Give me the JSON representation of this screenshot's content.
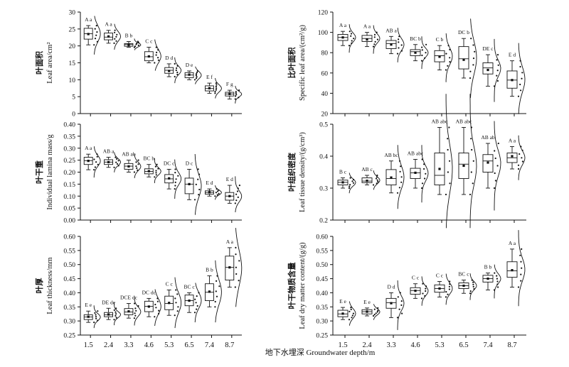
{
  "figure": {
    "xlabel": "地下水埋深  Groundwater depth/m",
    "x_categories": [
      "1.5",
      "2.4",
      "3.3",
      "4.6",
      "5.3",
      "6.5",
      "7.4",
      "8.7"
    ]
  },
  "chart_data": [
    {
      "type": "box",
      "id": "leaf-area",
      "ylabel_cn": "叶面积",
      "ylabel_en": "Leaf area/cm²",
      "ylim": [
        0,
        30
      ],
      "yticks": [
        0,
        5,
        10,
        15,
        20,
        25,
        30
      ],
      "tick_format": "int",
      "categories": [
        "1.5",
        "2.4",
        "3.3",
        "4.6",
        "5.3",
        "6.5",
        "7.4",
        "8.7"
      ],
      "boxes": [
        {
          "min": 20.3,
          "q1": 22.0,
          "median": 23.6,
          "q3": 25.2,
          "max": 26.0,
          "mean": 23.5
        },
        {
          "min": 20.8,
          "q1": 21.8,
          "median": 22.6,
          "q3": 23.8,
          "max": 24.6,
          "mean": 22.8
        },
        {
          "min": 19.6,
          "q1": 19.9,
          "median": 20.4,
          "q3": 20.7,
          "max": 21.3,
          "mean": 20.3
        },
        {
          "min": 15.0,
          "q1": 15.6,
          "median": 16.8,
          "q3": 18.3,
          "max": 19.6,
          "mean": 16.9
        },
        {
          "min": 10.9,
          "q1": 11.9,
          "median": 12.8,
          "q3": 13.6,
          "max": 14.7,
          "mean": 12.6
        },
        {
          "min": 10.0,
          "q1": 10.6,
          "median": 11.4,
          "q3": 12.1,
          "max": 12.6,
          "mean": 11.5
        },
        {
          "min": 6.0,
          "q1": 6.7,
          "median": 7.4,
          "q3": 8.2,
          "max": 9.0,
          "mean": 7.5
        },
        {
          "min": 4.3,
          "q1": 5.2,
          "median": 5.8,
          "q3": 6.3,
          "max": 6.9,
          "mean": 5.8
        }
      ],
      "groups": [
        "A a",
        "A a",
        "B b",
        "C c",
        "D d",
        "D e",
        "E f",
        "F g"
      ]
    },
    {
      "type": "box",
      "id": "specific-leaf-area",
      "ylabel_cn": "比叶面积",
      "ylabel_en": "Specific leaf area/(cm²/g)",
      "ylim": [
        20,
        120
      ],
      "yticks": [
        20,
        40,
        60,
        80,
        100,
        120
      ],
      "tick_format": "int",
      "categories": [
        "1.5",
        "2.4",
        "3.3",
        "4.6",
        "5.3",
        "6.5",
        "7.4",
        "8.7"
      ],
      "boxes": [
        {
          "min": 87,
          "q1": 92,
          "median": 95,
          "q3": 98,
          "max": 101,
          "mean": 95
        },
        {
          "min": 86,
          "q1": 91,
          "median": 94,
          "q3": 97,
          "max": 100,
          "mean": 93
        },
        {
          "min": 79,
          "q1": 84,
          "median": 89,
          "q3": 92,
          "max": 96,
          "mean": 88
        },
        {
          "min": 72,
          "q1": 77,
          "median": 81,
          "q3": 83,
          "max": 88,
          "mean": 80
        },
        {
          "min": 63,
          "q1": 71,
          "median": 77,
          "q3": 82,
          "max": 87,
          "mean": 76
        },
        {
          "min": 55,
          "q1": 64,
          "median": 74,
          "q3": 86,
          "max": 94,
          "mean": 73
        },
        {
          "min": 47,
          "q1": 59,
          "median": 65,
          "q3": 70,
          "max": 78,
          "mean": 63
        },
        {
          "min": 37,
          "q1": 45,
          "median": 53,
          "q3": 62,
          "max": 72,
          "mean": 53
        }
      ],
      "groups": [
        "A a",
        "A a",
        "AB a",
        "BC b",
        "C b",
        "DC b",
        "DE c",
        "E d"
      ]
    },
    {
      "type": "box",
      "id": "lamina-mass",
      "ylabel_cn": "叶干重",
      "ylabel_en": "Individual lamina mass/g",
      "ylim": [
        0,
        0.4
      ],
      "yticks": [
        0,
        0.05,
        0.1,
        0.15,
        0.2,
        0.25,
        0.3,
        0.35,
        0.4
      ],
      "tick_format": "fixed2",
      "categories": [
        "1.5",
        "2.4",
        "3.3",
        "4.6",
        "5.3",
        "6.5",
        "7.4",
        "8.7"
      ],
      "boxes": [
        {
          "min": 0.21,
          "q1": 0.232,
          "median": 0.248,
          "q3": 0.262,
          "max": 0.275,
          "mean": 0.247
        },
        {
          "min": 0.22,
          "q1": 0.232,
          "median": 0.242,
          "q3": 0.252,
          "max": 0.262,
          "mean": 0.242
        },
        {
          "min": 0.2,
          "q1": 0.212,
          "median": 0.225,
          "q3": 0.236,
          "max": 0.25,
          "mean": 0.224
        },
        {
          "min": 0.18,
          "q1": 0.193,
          "median": 0.203,
          "q3": 0.214,
          "max": 0.232,
          "mean": 0.204
        },
        {
          "min": 0.13,
          "q1": 0.155,
          "median": 0.172,
          "q3": 0.19,
          "max": 0.212,
          "mean": 0.174
        },
        {
          "min": 0.085,
          "q1": 0.11,
          "median": 0.15,
          "q3": 0.175,
          "max": 0.212,
          "mean": 0.15
        },
        {
          "min": 0.1,
          "q1": 0.108,
          "median": 0.115,
          "q3": 0.122,
          "max": 0.13,
          "mean": 0.116
        },
        {
          "min": 0.07,
          "q1": 0.083,
          "median": 0.1,
          "q3": 0.115,
          "max": 0.145,
          "mean": 0.1
        }
      ],
      "groups": [
        "A a",
        "AB a",
        "AB ab",
        "BC b",
        "DC c",
        "D c",
        "E d",
        "E d"
      ]
    },
    {
      "type": "box",
      "id": "tissue-density",
      "ylabel_cn": "叶组织密度",
      "ylabel_en": "Leaf tissue density/(g/cm³)",
      "ylim": [
        0.2,
        0.5
      ],
      "yticks": [
        0.2,
        0.3,
        0.4,
        0.5
      ],
      "tick_format": "fixed1",
      "categories": [
        "1.5",
        "2.4",
        "3.3",
        "4.6",
        "5.3",
        "6.5",
        "7.4",
        "8.7"
      ],
      "boxes": [
        {
          "min": 0.3,
          "q1": 0.31,
          "median": 0.318,
          "q3": 0.325,
          "max": 0.332,
          "mean": 0.318
        },
        {
          "min": 0.31,
          "q1": 0.317,
          "median": 0.322,
          "q3": 0.332,
          "max": 0.34,
          "mean": 0.323
        },
        {
          "min": 0.285,
          "q1": 0.31,
          "median": 0.33,
          "q3": 0.358,
          "max": 0.385,
          "mean": 0.333
        },
        {
          "min": 0.3,
          "q1": 0.33,
          "median": 0.348,
          "q3": 0.362,
          "max": 0.39,
          "mean": 0.348
        },
        {
          "min": 0.28,
          "q1": 0.31,
          "median": 0.34,
          "q3": 0.41,
          "max": 0.49,
          "mean": 0.36
        },
        {
          "min": 0.28,
          "q1": 0.33,
          "median": 0.375,
          "q3": 0.41,
          "max": 0.49,
          "mean": 0.37
        },
        {
          "min": 0.3,
          "q1": 0.35,
          "median": 0.385,
          "q3": 0.405,
          "max": 0.44,
          "mean": 0.38
        },
        {
          "min": 0.36,
          "q1": 0.38,
          "median": 0.395,
          "q3": 0.41,
          "max": 0.43,
          "mean": 0.4
        }
      ],
      "groups": [
        "B c",
        "AB c",
        "AB bc",
        "AB abc",
        "AB abc",
        "AB abc",
        "AB ab",
        "A a"
      ]
    },
    {
      "type": "box",
      "id": "leaf-thickness",
      "ylabel_cn": "叶厚",
      "ylabel_en": "Leaf thickness/mm",
      "ylim": [
        0.25,
        0.6
      ],
      "yticks": [
        0.25,
        0.3,
        0.35,
        0.4,
        0.45,
        0.5,
        0.55,
        0.6
      ],
      "tick_format": "fixed2",
      "categories": [
        "1.5",
        "2.4",
        "3.3",
        "4.6",
        "5.3",
        "6.5",
        "7.4",
        "8.7"
      ],
      "boxes": [
        {
          "min": 0.295,
          "q1": 0.305,
          "median": 0.314,
          "q3": 0.322,
          "max": 0.335,
          "mean": 0.315
        },
        {
          "min": 0.305,
          "q1": 0.315,
          "median": 0.322,
          "q3": 0.33,
          "max": 0.345,
          "mean": 0.323
        },
        {
          "min": 0.31,
          "q1": 0.322,
          "median": 0.332,
          "q3": 0.344,
          "max": 0.362,
          "mean": 0.334
        },
        {
          "min": 0.315,
          "q1": 0.333,
          "median": 0.352,
          "q3": 0.37,
          "max": 0.38,
          "mean": 0.351
        },
        {
          "min": 0.32,
          "q1": 0.34,
          "median": 0.362,
          "q3": 0.388,
          "max": 0.41,
          "mean": 0.364
        },
        {
          "min": 0.33,
          "q1": 0.354,
          "median": 0.372,
          "q3": 0.392,
          "max": 0.4,
          "mean": 0.372
        },
        {
          "min": 0.35,
          "q1": 0.372,
          "median": 0.402,
          "q3": 0.432,
          "max": 0.46,
          "mean": 0.404
        },
        {
          "min": 0.42,
          "q1": 0.445,
          "median": 0.49,
          "q3": 0.53,
          "max": 0.56,
          "mean": 0.49
        }
      ],
      "groups": [
        "E e",
        "DE de",
        "DCE dc",
        "DC dc",
        "C c",
        "BC c",
        "B b",
        "A a"
      ]
    },
    {
      "type": "box",
      "id": "dry-matter",
      "ylabel_cn": "叶干物质含量",
      "ylabel_en": "Leaf dry matter content/(g/g)",
      "ylim": [
        0.25,
        0.6
      ],
      "yticks": [
        0.25,
        0.3,
        0.35,
        0.4,
        0.45,
        0.5,
        0.55,
        0.6
      ],
      "tick_format": "fixed2",
      "categories": [
        "1.5",
        "2.4",
        "3.3",
        "4.6",
        "5.3",
        "6.5",
        "7.4",
        "8.7"
      ],
      "boxes": [
        {
          "min": 0.305,
          "q1": 0.315,
          "median": 0.325,
          "q3": 0.338,
          "max": 0.348,
          "mean": 0.326
        },
        {
          "min": 0.318,
          "q1": 0.325,
          "median": 0.333,
          "q3": 0.34,
          "max": 0.346,
          "mean": 0.333
        },
        {
          "min": 0.312,
          "q1": 0.345,
          "median": 0.365,
          "q3": 0.38,
          "max": 0.4,
          "mean": 0.363
        },
        {
          "min": 0.38,
          "q1": 0.395,
          "median": 0.408,
          "q3": 0.418,
          "max": 0.432,
          "mean": 0.407
        },
        {
          "min": 0.385,
          "q1": 0.402,
          "median": 0.415,
          "q3": 0.428,
          "max": 0.44,
          "mean": 0.415
        },
        {
          "min": 0.398,
          "q1": 0.415,
          "median": 0.425,
          "q3": 0.435,
          "max": 0.445,
          "mean": 0.425
        },
        {
          "min": 0.41,
          "q1": 0.438,
          "median": 0.45,
          "q3": 0.462,
          "max": 0.47,
          "mean": 0.45
        },
        {
          "min": 0.42,
          "q1": 0.455,
          "median": 0.478,
          "q3": 0.51,
          "max": 0.555,
          "mean": 0.48
        }
      ],
      "groups": [
        "E e",
        "E e",
        "D d",
        "C c",
        "C c",
        "BC c",
        "B b",
        "A a"
      ]
    }
  ]
}
